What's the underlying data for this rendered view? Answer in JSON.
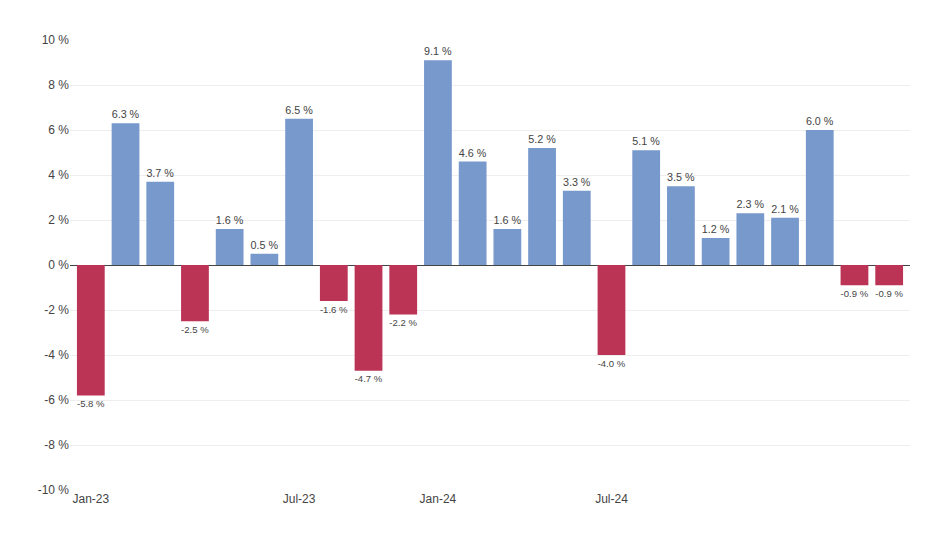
{
  "chart_data": {
    "type": "bar",
    "categories": [
      "Jan-23",
      null,
      null,
      null,
      null,
      null,
      "Jul-23",
      null,
      null,
      null,
      "Jan-24",
      null,
      null,
      null,
      null,
      "Jul-24",
      null,
      null,
      null,
      null,
      null,
      null,
      null,
      null
    ],
    "values": [
      -5.8,
      6.3,
      3.7,
      -2.5,
      1.6,
      0.5,
      6.5,
      -1.6,
      -4.7,
      -2.2,
      9.1,
      4.6,
      1.6,
      5.2,
      3.3,
      -4.0,
      5.1,
      3.5,
      1.2,
      2.3,
      2.1,
      6.0,
      -0.9,
      -0.9
    ],
    "value_labels": [
      "-5.8 %",
      "6.3 %",
      "3.7 %",
      "-2.5 %",
      "1.6 %",
      "0.5 %",
      "6.5 %",
      "-1.6 %",
      "-4.7 %",
      "-2.2 %",
      "9.1 %",
      "4.6 %",
      "1.6 %",
      "5.2 %",
      "3.3 %",
      "-4.0 %",
      "5.1 %",
      "3.5 %",
      "1.2 %",
      "2.3 %",
      "2.1 %",
      "6.0 %",
      "-0.9 %",
      "-0.9 %"
    ],
    "colors": [
      "#bb3355",
      "#7799cc",
      "#7799cc",
      "#bb3355",
      "#7799cc",
      "#7799cc",
      "#7799cc",
      "#bb3355",
      "#bb3355",
      "#bb3355",
      "#7799cc",
      "#7799cc",
      "#7799cc",
      "#7799cc",
      "#7799cc",
      "#bb3355",
      "#7799cc",
      "#7799cc",
      "#7799cc",
      "#7799cc",
      "#7799cc",
      "#7799cc",
      "#bb3355",
      "#bb3355"
    ],
    "data_labels": true,
    "ylim": [
      -10,
      10
    ],
    "yticks": [
      {
        "value": -10,
        "label": "-10 %"
      },
      {
        "value": -8,
        "label": "-8 %"
      },
      {
        "value": -6,
        "label": "-6 %"
      },
      {
        "value": -4,
        "label": "-4 %"
      },
      {
        "value": -2,
        "label": "-2 %"
      },
      {
        "value": 0,
        "label": "0 %"
      },
      {
        "value": 2,
        "label": "2 %"
      },
      {
        "value": 4,
        "label": "4 %"
      },
      {
        "value": 6,
        "label": "6 %"
      },
      {
        "value": 8,
        "label": "8 %"
      },
      {
        "value": 10,
        "label": "10 %"
      }
    ],
    "grid": true
  }
}
